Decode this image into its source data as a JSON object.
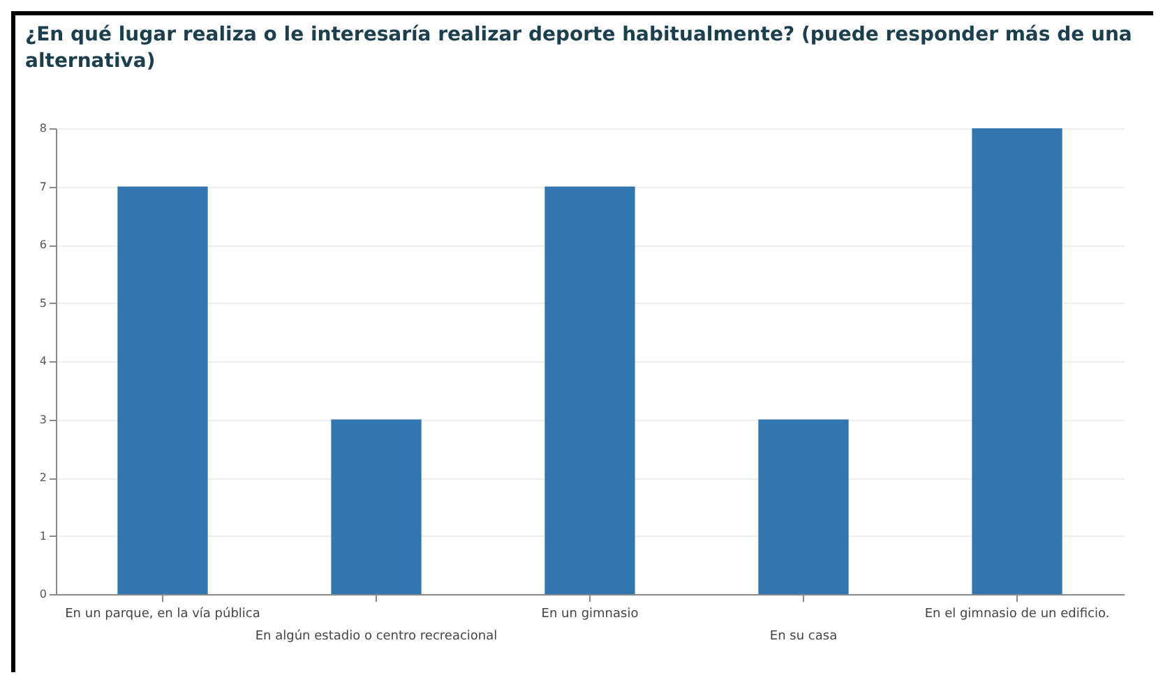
{
  "chart_data": {
    "type": "bar",
    "title": "¿En qué lugar realiza o le interesaría realizar deporte habitualmente? (puede responder más de una alternativa)",
    "categories": [
      "En un parque, en la vía pública",
      "En algún estadio o centro recreacional",
      "En un gimnasio",
      "En su casa",
      "En el gimnasio de un edificio."
    ],
    "values": [
      7,
      3,
      7,
      3,
      8
    ],
    "color": "#3276b1",
    "ylim": [
      0,
      8
    ],
    "yticks": [
      0,
      1,
      2,
      3,
      4,
      5,
      6,
      7,
      8
    ],
    "grid": "y"
  }
}
